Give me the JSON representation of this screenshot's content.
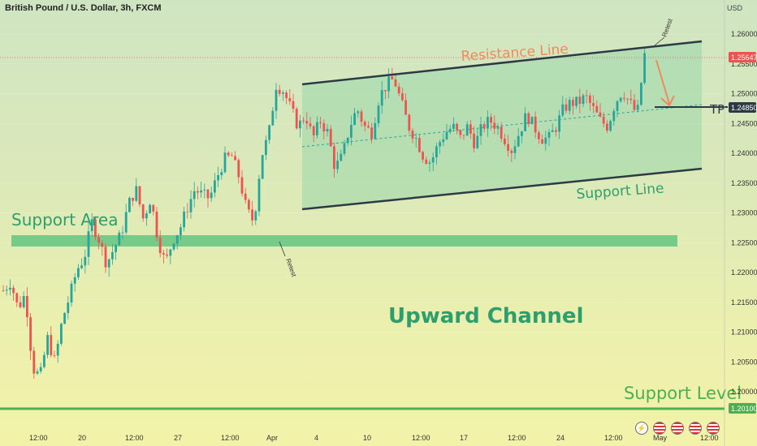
{
  "header": {
    "title": "British Pound / U.S. Dollar, 3h, FXCM",
    "currency": "USD"
  },
  "chart_data": {
    "type": "candlestick",
    "title": "British Pound / U.S. Dollar, 3h, FXCM",
    "ylim": [
      1.195,
      1.263
    ],
    "y_ticks": [
      "1.26000",
      "1.25500",
      "1.25000",
      "1.24500",
      "1.24000",
      "1.23500",
      "1.23000",
      "1.22500",
      "1.22000",
      "1.21500",
      "1.21000",
      "1.20500",
      "1.20000"
    ],
    "x_ticks": [
      "12:00",
      "20",
      "12:00",
      "27",
      "12:00",
      "Apr",
      "4",
      "10",
      "12:00",
      "17",
      "12:00",
      "24",
      "12:00",
      "May",
      "12:00"
    ],
    "price_labels": {
      "current": "1.25647",
      "tp": "1.24850",
      "support_level": "1.20100"
    },
    "candle_colors": {
      "up": "#26a69a",
      "down": "#ef5350"
    },
    "close_path": [
      1.217,
      1.2185,
      1.214,
      1.2165,
      1.204,
      1.2025,
      1.209,
      1.205,
      1.212,
      1.216,
      1.2205,
      1.2225,
      1.2285,
      1.2255,
      1.2215,
      1.224,
      1.2265,
      1.2315,
      1.234,
      1.229,
      1.2325,
      1.2255,
      1.2215,
      1.2255,
      1.2275,
      1.231,
      1.234,
      1.233,
      1.2325,
      1.236,
      1.239,
      1.2395,
      1.236,
      1.2305,
      1.2285,
      1.2395,
      1.243,
      1.2515,
      1.2505,
      1.2475,
      1.2445,
      1.2465,
      1.2425,
      1.2455,
      1.2435,
      1.2375,
      1.2395,
      1.2445,
      1.2475,
      1.2445,
      1.2435,
      1.2495,
      1.2515,
      1.2525,
      1.2485,
      1.2445,
      1.2425,
      1.2395,
      1.2385,
      1.2415,
      1.2435,
      1.2445,
      1.2425,
      1.2445,
      1.2415,
      1.2445,
      1.2455,
      1.2445,
      1.2425,
      1.2405,
      1.2435,
      1.2465,
      1.2445,
      1.2425,
      1.2425,
      1.2445,
      1.2475,
      1.2485,
      1.2485,
      1.2495,
      1.2475,
      1.2455,
      1.2445,
      1.2485,
      1.2505,
      1.2485,
      1.2465,
      1.2565
    ],
    "annotations": {
      "support_area_label": "Support Area",
      "resistance_label": "Resistance Line",
      "support_line_label": "Support Line",
      "channel_label": "Upward Channel",
      "support_level_label": "Support Level",
      "tp_label": "TP",
      "retest_label": "Retest"
    },
    "colors": {
      "channel_fill": "#8fd3a7",
      "channel_line": "#2d3a45",
      "support_area": "#52c07a",
      "support_level": "#4caf50",
      "resistance_text": "#f08a5d",
      "green_text": "#2e9e6e",
      "arrow": "#f08a5d"
    }
  }
}
